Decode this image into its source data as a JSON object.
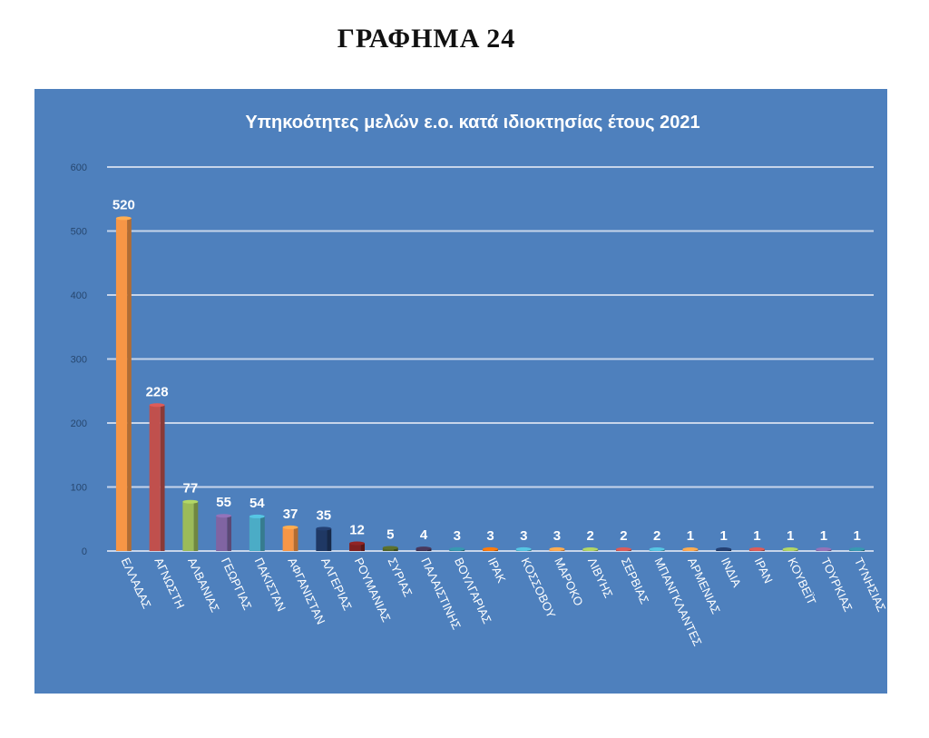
{
  "heading": "ΓΡΑΦΗΜΑ 24",
  "chart_data": {
    "type": "bar",
    "title": "Υπηκοότητες μελών ε.ο. κατά ιδιοκτησίας έτους 2021",
    "categories": [
      "ΕΛΛΑΔΑΣ",
      "ΑΓΝΩΣΤΗ",
      "ΑΛΒΑΝΙΑΣ",
      "ΓΕΩΡΓΙΑΣ",
      "ΠΑΚΙΣΤΑΝ",
      "ΑΦΓΑΝΙΣΤΑΝ",
      "ΑΛΓΕΡΙΑΣ",
      "ΡΟΥΜΑΝΙΑΣ",
      "ΣΥΡΙΑΣ",
      "ΠΑΛΑΙΣΤΙΝΗΣ",
      "ΒΟΥΛΓΑΡΙΑΣ",
      "ΙΡΑΚ",
      "ΚΟΣΣΟΒΟΥ",
      "ΜΑΡΟΚΟ",
      "ΛΙΒΥΗΣ",
      "ΣΕΡΒΙΑΣ",
      "ΜΠΑΝΓΚΛΑΝΤΕΣ",
      "ΑΡΜΕΝΙΑΣ",
      "ΙΝΔΙΑ",
      "ΙΡΑΝ",
      "ΚΟΥΒΕΪΤ",
      "ΤΟΥΡΚΙΑΣ",
      "ΤΥΝΗΣΙΑΣ"
    ],
    "values": [
      520,
      228,
      77,
      55,
      54,
      37,
      35,
      12,
      5,
      4,
      3,
      3,
      3,
      3,
      2,
      2,
      2,
      1,
      1,
      1,
      1,
      1,
      1
    ],
    "bar_colors": [
      "#f79646",
      "#c0504d",
      "#9bbb59",
      "#8064a2",
      "#4bacc6",
      "#f79646",
      "#1f3864",
      "#7f1f1f",
      "#4f6228",
      "#3f3151",
      "#31849b",
      "#e46c0a",
      "#4bacc6",
      "#f79646",
      "#9bbb59",
      "#c0504d",
      "#4bacc6",
      "#f79646",
      "#1f3864",
      "#c0504d",
      "#9bbb59",
      "#8064a2",
      "#31849b"
    ],
    "yticks": [
      0,
      100,
      200,
      300,
      400,
      500,
      600
    ],
    "ylim": [
      0,
      600
    ],
    "xlabel": "",
    "ylabel": "",
    "grid": true,
    "legend": "none",
    "colors": {
      "background": "#4e80bd",
      "gridline": "#c7d5ea",
      "text": "#ffffff"
    }
  }
}
